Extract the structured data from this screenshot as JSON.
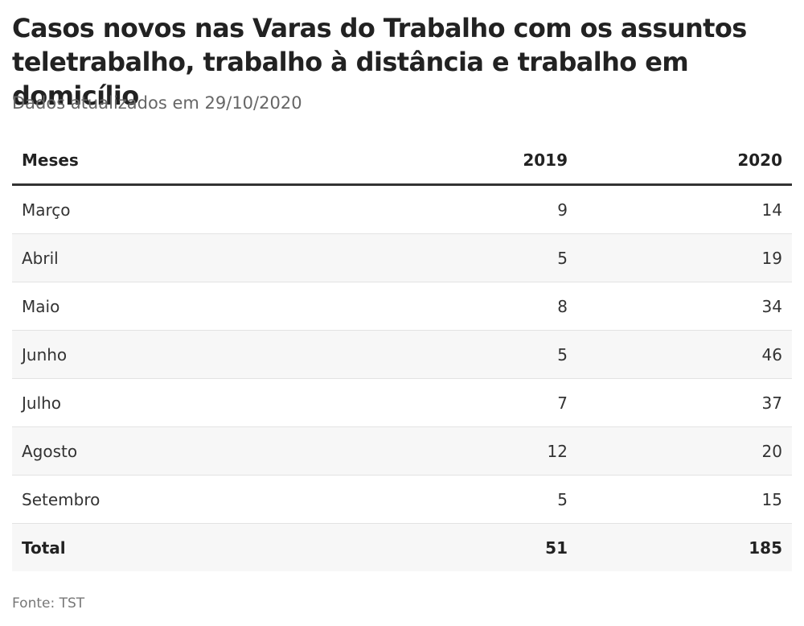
{
  "header": {
    "title": "Casos novos nas Varas do Trabalho com os assuntos teletrabalho, trabalho à distância e trabalho em domicílio",
    "subtitle": "Dados atualizados em 29/10/2020"
  },
  "chart_data": {
    "type": "table",
    "columns": [
      "Meses",
      "2019",
      "2020"
    ],
    "rows": [
      {
        "label": "Março",
        "v2019": "9",
        "v2020": "14"
      },
      {
        "label": "Abril",
        "v2019": "5",
        "v2020": "19"
      },
      {
        "label": "Maio",
        "v2019": "8",
        "v2020": "34"
      },
      {
        "label": "Junho",
        "v2019": "5",
        "v2020": "46"
      },
      {
        "label": "Julho",
        "v2019": "7",
        "v2020": "37"
      },
      {
        "label": "Agosto",
        "v2019": "12",
        "v2020": "20"
      },
      {
        "label": "Setembro",
        "v2019": "5",
        "v2020": "15"
      },
      {
        "label": "Total",
        "v2019": "51",
        "v2020": "185"
      }
    ]
  },
  "footer": {
    "source": "Fonte: TST"
  }
}
